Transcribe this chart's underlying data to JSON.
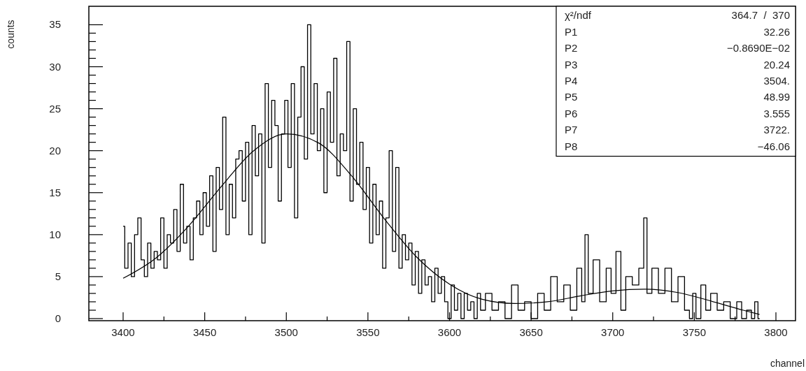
{
  "chart_data": {
    "type": "step",
    "xlabel": "channel",
    "ylabel": "counts",
    "xlim": [
      3379,
      3812
    ],
    "ylim": [
      -0.25,
      37.2
    ],
    "xticks": [
      3400,
      {
        "value": 3425,
        "label": null
      },
      3450,
      {
        "value": 3475,
        "label": null
      },
      3500,
      {
        "value": 3525,
        "label": null
      },
      3550,
      {
        "value": 3575,
        "label": null
      },
      3600,
      {
        "value": 3625,
        "label": null
      },
      3650,
      {
        "value": 3675,
        "label": null
      },
      3700,
      {
        "value": 3725,
        "label": null
      },
      3750,
      {
        "value": 3775,
        "label": null
      },
      3800
    ],
    "yticks": [
      0,
      {
        "value": 1,
        "label": null
      },
      {
        "value": 2,
        "label": null
      },
      {
        "value": 3,
        "label": null
      },
      {
        "value": 4,
        "label": null
      },
      5,
      {
        "value": 6,
        "label": null
      },
      {
        "value": 7,
        "label": null
      },
      {
        "value": 8,
        "label": null
      },
      {
        "value": 9,
        "label": null
      },
      10,
      {
        "value": 11,
        "label": null
      },
      {
        "value": 12,
        "label": null
      },
      {
        "value": 13,
        "label": null
      },
      {
        "value": 14,
        "label": null
      },
      15,
      {
        "value": 16,
        "label": null
      },
      {
        "value": 17,
        "label": null
      },
      {
        "value": 18,
        "label": null
      },
      {
        "value": 19,
        "label": null
      },
      20,
      {
        "value": 21,
        "label": null
      },
      {
        "value": 22,
        "label": null
      },
      {
        "value": 23,
        "label": null
      },
      {
        "value": 24,
        "label": null
      },
      25,
      {
        "value": 26,
        "label": null
      },
      {
        "value": 27,
        "label": null
      },
      {
        "value": 28,
        "label": null
      },
      {
        "value": 29,
        "label": null
      },
      30,
      {
        "value": 31,
        "label": null
      },
      {
        "value": 32,
        "label": null
      },
      {
        "value": 33,
        "label": null
      },
      {
        "value": 34,
        "label": null
      },
      35
    ],
    "grid": false,
    "annotations": [
      "χ²/ndf 364.7  /  370",
      "P1 32.26",
      "P2 −0.8690E−02",
      "P3 20.24",
      "P4 3504.",
      "P5 48.99",
      "P6 3.555",
      "P7 3722.",
      "P8 −46.06"
    ],
    "series": [
      {
        "color": "#000000",
        "x": [
          3400,
          3402,
          3404,
          3406,
          3408,
          3410,
          3412,
          3414,
          3416,
          3418,
          3420,
          3422,
          3424,
          3426,
          3428,
          3430,
          3432,
          3434,
          3436,
          3438,
          3440,
          3442,
          3444,
          3446,
          3448,
          3450,
          3452,
          3454,
          3456,
          3458,
          3460,
          3462,
          3464,
          3466,
          3468,
          3470,
          3472,
          3474,
          3476,
          3478,
          3480,
          3482,
          3484,
          3486,
          3488,
          3490,
          3492,
          3494,
          3496,
          3498,
          3500,
          3502,
          3504,
          3506,
          3508,
          3510,
          3512,
          3514,
          3516,
          3518,
          3520,
          3522,
          3524,
          3526,
          3528,
          3530,
          3532,
          3534,
          3536,
          3538,
          3540,
          3542,
          3544,
          3546,
          3548,
          3550,
          3552,
          3554,
          3556,
          3558,
          3560,
          3562,
          3564,
          3566,
          3568,
          3570,
          3572,
          3574,
          3576,
          3578,
          3580,
          3582,
          3584,
          3586,
          3588,
          3590,
          3592,
          3594,
          3596,
          3598,
          3600,
          3602,
          3604,
          3606,
          3608,
          3610,
          3612,
          3614,
          3616,
          3618,
          3620,
          3624,
          3628,
          3632,
          3636,
          3640,
          3644,
          3648,
          3652,
          3656,
          3660,
          3664,
          3668,
          3672,
          3676,
          3680,
          3682,
          3684,
          3686,
          3690,
          3694,
          3698,
          3700,
          3704,
          3706,
          3710,
          3714,
          3718,
          3720,
          3722,
          3726,
          3730,
          3734,
          3738,
          3742,
          3746,
          3748,
          3750,
          3752,
          3756,
          3758,
          3762,
          3766,
          3770,
          3774,
          3778,
          3780,
          3784,
          3786,
          3788,
          3790
        ],
        "values": [
          11,
          6,
          9,
          5,
          10,
          12,
          7,
          5,
          9,
          6,
          8,
          7,
          12,
          6,
          10,
          9,
          13,
          8,
          16,
          9,
          11,
          7,
          12,
          14,
          10,
          15,
          11,
          17,
          8,
          18,
          13,
          24,
          10,
          16,
          12,
          19,
          20,
          14,
          21,
          10,
          23,
          17,
          22,
          9,
          28,
          18,
          26,
          23,
          14,
          22,
          26,
          18,
          28,
          12,
          24,
          30,
          19,
          35,
          22,
          28,
          20,
          25,
          15,
          27,
          21,
          31,
          17,
          22,
          20,
          33,
          14,
          25,
          16,
          21,
          13,
          18,
          9,
          16,
          10,
          14,
          6,
          12,
          20,
          8,
          18,
          6,
          10,
          7,
          9,
          4,
          8,
          3,
          7,
          4,
          5,
          2,
          6,
          3,
          5,
          2,
          0,
          4,
          1,
          3,
          0,
          3,
          1,
          2,
          0,
          3,
          1,
          3,
          1,
          2,
          0,
          4,
          1,
          2,
          0,
          3,
          1,
          5,
          2,
          4,
          1,
          6,
          2,
          10,
          3,
          7,
          2,
          6,
          3,
          8,
          1,
          5,
          4,
          6,
          12,
          3,
          6,
          3,
          6,
          2,
          5,
          1,
          0,
          3,
          0,
          4,
          1,
          3,
          1,
          2,
          0,
          2,
          0,
          1,
          0,
          2,
          0
        ]
      },
      {
        "type": "line",
        "color": "#000000",
        "x": [
          3400,
          3420,
          3440,
          3460,
          3480,
          3500,
          3520,
          3540,
          3560,
          3580,
          3600,
          3620,
          3640,
          3660,
          3680,
          3700,
          3720,
          3740,
          3760,
          3780,
          3790
        ],
        "values": [
          4.8,
          7.2,
          11.0,
          15.7,
          20.0,
          22.0,
          20.9,
          17.0,
          11.9,
          7.3,
          4.1,
          2.3,
          1.8,
          2.0,
          2.7,
          3.3,
          3.5,
          3.1,
          2.1,
          1.0,
          0.5
        ]
      }
    ]
  }
}
